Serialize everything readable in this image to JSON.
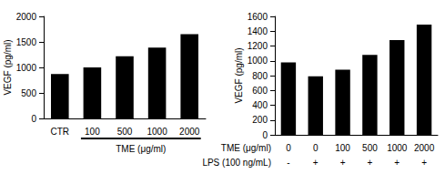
{
  "chart_data": [
    {
      "type": "bar",
      "ylabel": "VEGF (pg/ml)",
      "xlabel": "TME (μg/ml)",
      "categories": [
        "CTR",
        "100",
        "500",
        "1000",
        "2000"
      ],
      "values": [
        870,
        1000,
        1220,
        1390,
        1650
      ],
      "color": "#000000",
      "ylim": [
        0,
        2000
      ],
      "yticks": [
        0,
        500,
        1000,
        1500,
        2000
      ],
      "grid": false
    },
    {
      "type": "bar",
      "ylabel": "VEGF (pg/ml)",
      "x_row_labels": [
        "TME (μg/ml)",
        "LPS (100 ng/mL)"
      ],
      "categories": [
        "0\n-",
        "0\n+",
        "100\n+",
        "500\n+",
        "1000\n+",
        "2000\n+"
      ],
      "values": [
        980,
        790,
        880,
        1080,
        1280,
        1490
      ],
      "color": "#000000",
      "ylim": [
        0,
        1600
      ],
      "yticks": [
        0,
        200,
        400,
        600,
        800,
        1000,
        1200,
        1400,
        1600
      ],
      "grid": false
    }
  ]
}
